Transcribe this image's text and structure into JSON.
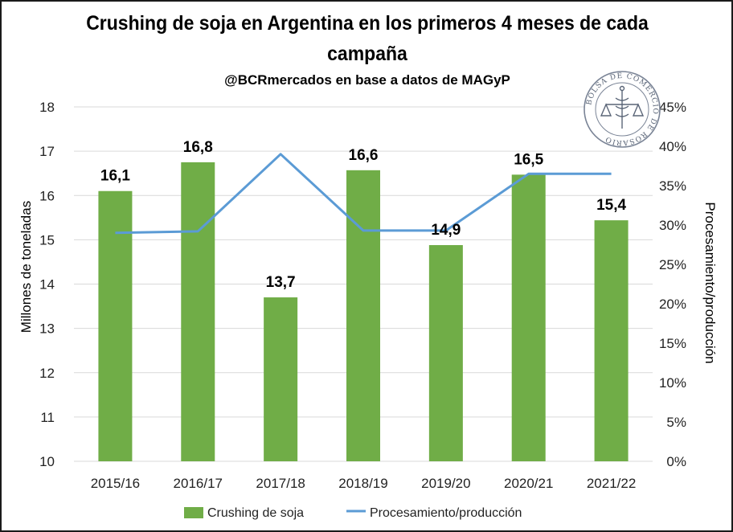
{
  "chart_data": {
    "type": "bar",
    "title": "Crushing de soja en Argentina en los primeros 4 meses de cada campaña",
    "subtitle": "@BCRmercados en base a datos de MAGyP",
    "categories": [
      "2015/16",
      "2016/17",
      "2017/18",
      "2018/19",
      "2019/20",
      "2020/21",
      "2021/22"
    ],
    "series": [
      {
        "name": "Crushing de soja",
        "type": "bar",
        "axis": "left",
        "values": [
          16.1,
          16.75,
          13.7,
          16.57,
          14.88,
          16.47,
          15.44
        ],
        "labels": [
          "16,1",
          "16,8",
          "13,7",
          "16,6",
          "14,9",
          "16,5",
          "15,4"
        ],
        "color": "#70ad47"
      },
      {
        "name": "Procesamiento/producción",
        "type": "line",
        "axis": "right",
        "values": [
          29.0,
          29.2,
          39.0,
          29.3,
          29.3,
          36.5,
          36.5
        ],
        "color": "#5b9bd5"
      }
    ],
    "ylabel": "Millones de toneladas",
    "ylim": [
      10,
      18
    ],
    "yticks": [
      "10",
      "11",
      "12",
      "13",
      "14",
      "15",
      "16",
      "17",
      "18"
    ],
    "y2label": "Procesamiento/producción",
    "y2lim": [
      0,
      45
    ],
    "y2ticks": [
      "0%",
      "5%",
      "10%",
      "15%",
      "20%",
      "25%",
      "30%",
      "35%",
      "40%",
      "45%"
    ],
    "grid": true,
    "legend_position": "bottom"
  },
  "seal": {
    "name": "BOLSA DE COMERCIO DE ROSARIO",
    "icon": "caduceus-scales-icon"
  }
}
